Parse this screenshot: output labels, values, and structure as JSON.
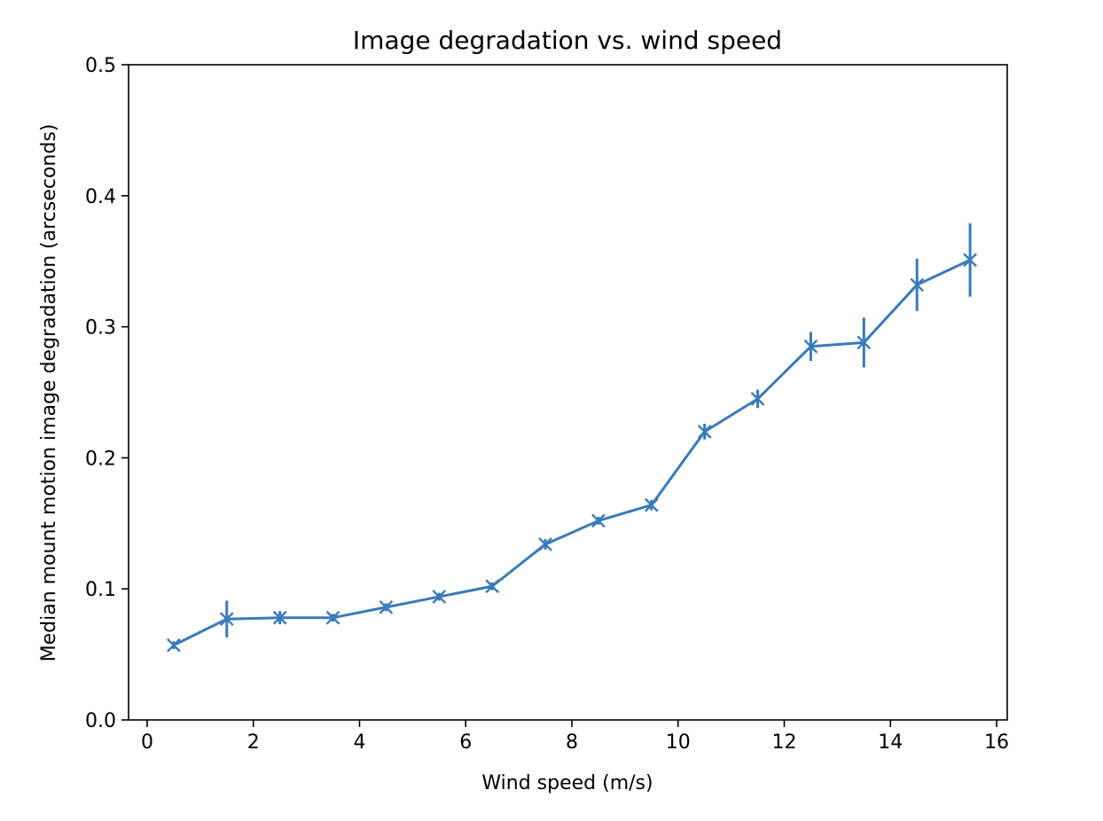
{
  "chart_data": {
    "type": "line",
    "title": "Image degradation vs. wind speed",
    "xlabel": "Wind speed (m/s)",
    "ylabel": "Median mount motion image degradation (arcseconds)",
    "xlim": [
      -0.35,
      16.2
    ],
    "ylim": [
      0,
      0.5
    ],
    "xticks": [
      "0",
      "2",
      "4",
      "6",
      "8",
      "10",
      "12",
      "14",
      "16"
    ],
    "yticks": [
      "0.0",
      "0.1",
      "0.2",
      "0.3",
      "0.4",
      "0.5"
    ],
    "grid": false,
    "marker": "x",
    "color": "#3a7ab9",
    "series": [
      {
        "x": [
          0.5,
          1.5,
          2.5,
          3.5,
          4.5,
          5.5,
          6.5,
          7.5,
          8.5,
          9.5,
          10.5,
          11.5,
          12.5,
          13.5,
          14.5,
          15.5
        ],
        "y": [
          0.057,
          0.077,
          0.078,
          0.078,
          0.086,
          0.094,
          0.102,
          0.134,
          0.152,
          0.164,
          0.22,
          0.245,
          0.285,
          0.288,
          0.332,
          0.351
        ],
        "yerr": [
          0.003,
          0.014,
          0.005,
          0.003,
          0.003,
          0.003,
          0.003,
          0.004,
          0.003,
          0.004,
          0.006,
          0.007,
          0.011,
          0.019,
          0.02,
          0.028
        ]
      }
    ]
  }
}
